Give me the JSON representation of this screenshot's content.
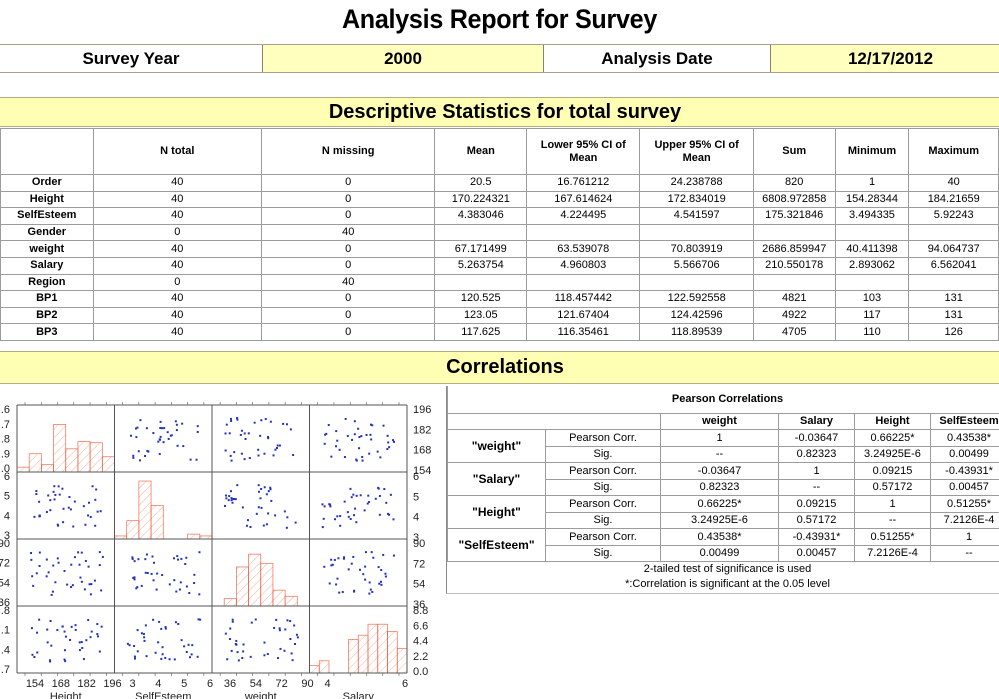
{
  "report": {
    "title": "Analysis Report for Survey",
    "survey_year_label": "Survey Year",
    "survey_year": "2000",
    "analysis_date_label": "Analysis Date",
    "analysis_date": "12/17/2012"
  },
  "descriptive": {
    "section_title": "Descriptive Statistics for total survey",
    "columns": [
      "",
      "N total",
      "N missing",
      "Mean",
      "Lower 95% CI of Mean",
      "Upper 95% CI of Mean",
      "Sum",
      "Minimum",
      "Maximum"
    ],
    "rows": [
      [
        "Order",
        "40",
        "0",
        "20.5",
        "16.761212",
        "24.238788",
        "820",
        "1",
        "40"
      ],
      [
        "Height",
        "40",
        "0",
        "170.224321",
        "167.614624",
        "172.834019",
        "6808.972858",
        "154.28344",
        "184.21659"
      ],
      [
        "SelfEsteem",
        "40",
        "0",
        "4.383046",
        "4.224495",
        "4.541597",
        "175.321846",
        "3.494335",
        "5.92243"
      ],
      [
        "Gender",
        "0",
        "40",
        "",
        "",
        "",
        "",
        "",
        ""
      ],
      [
        "weight",
        "40",
        "0",
        "67.171499",
        "63.539078",
        "70.803919",
        "2686.859947",
        "40.411398",
        "94.064737"
      ],
      [
        "Salary",
        "40",
        "0",
        "5.263754",
        "4.960803",
        "5.566706",
        "210.550178",
        "2.893062",
        "6.562041"
      ],
      [
        "Region",
        "0",
        "40",
        "",
        "",
        "",
        "",
        "",
        ""
      ],
      [
        "BP1",
        "40",
        "0",
        "120.525",
        "118.457442",
        "122.592558",
        "4821",
        "103",
        "131"
      ],
      [
        "BP2",
        "40",
        "0",
        "123.05",
        "121.67404",
        "124.42596",
        "4922",
        "117",
        "131"
      ],
      [
        "BP3",
        "40",
        "0",
        "117.625",
        "116.35461",
        "118.89539",
        "4705",
        "110",
        "126"
      ]
    ]
  },
  "correlations": {
    "section_title": "Correlations",
    "pearson": {
      "title": "Pearson Correlations",
      "columns": [
        "weight",
        "Salary",
        "Height",
        "SelfEsteem"
      ],
      "stat_labels": [
        "Pearson Corr.",
        "Sig."
      ],
      "rows": [
        {
          "var": "\"weight\"",
          "corr": [
            "1",
            "-0.03647",
            "0.66225*",
            "0.43538*"
          ],
          "sig": [
            "--",
            "0.82323",
            "3.24925E-6",
            "0.00499"
          ]
        },
        {
          "var": "\"Salary\"",
          "corr": [
            "-0.03647",
            "1",
            "0.09215",
            "-0.43931*"
          ],
          "sig": [
            "0.82323",
            "--",
            "0.57172",
            "0.00457"
          ]
        },
        {
          "var": "\"Height\"",
          "corr": [
            "0.66225*",
            "0.09215",
            "1",
            "0.51255*"
          ],
          "sig": [
            "3.24925E-6",
            "0.57172",
            "--",
            "7.2126E-4"
          ]
        },
        {
          "var": "\"SelfEsteem\"",
          "corr": [
            "0.43538*",
            "-0.43931*",
            "0.51255*",
            "1"
          ],
          "sig": [
            "0.00499",
            "0.00457",
            "7.2126E-4",
            "--"
          ]
        }
      ],
      "notes": [
        "2-tailed test of significance is used",
        "*:Correlation is significant at the 0.05 level"
      ]
    },
    "matrix": {
      "variables": [
        "Height",
        "SelfEsteem",
        "weight",
        "Salary"
      ],
      "x_ticks": {
        "Height": [
          "154",
          "168",
          "182",
          "196"
        ],
        "SelfEsteem": [
          "3",
          "4",
          "5",
          "6"
        ],
        "weight": [
          "36",
          "54",
          "72",
          "90"
        ],
        "Salary": [
          "4",
          "6"
        ]
      },
      "right_ticks": {
        "Height": [
          "196",
          "182",
          "168",
          "154"
        ],
        "SelfEsteem": [
          "6",
          "5",
          "4",
          "3"
        ],
        "weight": [
          "90",
          "72",
          "54",
          "36"
        ],
        "Salary": [
          "8.8",
          "6.6",
          "4.4",
          "2.2",
          "0.0"
        ]
      },
      "left_ticks": {
        "row1": [
          ".6",
          ".7",
          ".8",
          ".9",
          ".0"
        ],
        "row2": [
          "6",
          "5",
          "4",
          "3"
        ],
        "row3": [
          "90",
          "72",
          "54",
          "36"
        ],
        "row4": [
          ".8",
          ".1",
          ".4",
          ".7"
        ]
      },
      "colors": {
        "points": "#2233bb",
        "hist": "#f05030",
        "grid": "#555555"
      }
    }
  }
}
